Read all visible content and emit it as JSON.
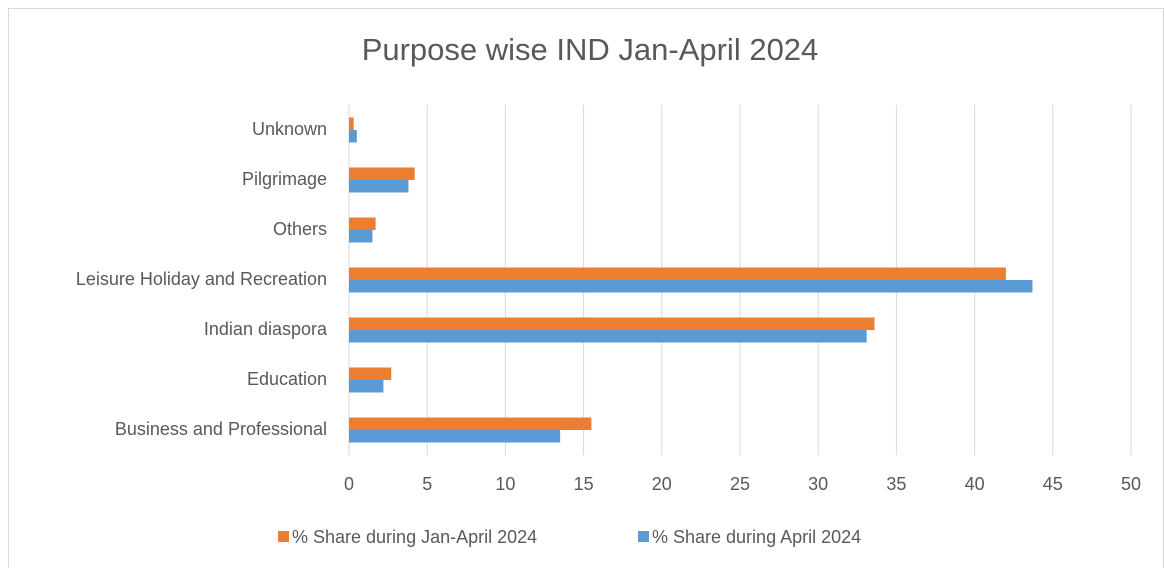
{
  "chart_data": {
    "type": "bar",
    "orientation": "horizontal",
    "title": "Purpose wise IND Jan-April 2024",
    "categories": [
      "Business and Professional",
      "Education",
      "Indian diaspora",
      "Leisure Holiday and Recreation",
      "Others",
      "Pilgrimage",
      "Unknown"
    ],
    "series": [
      {
        "name": "% Share during Jan-April 2024",
        "color": "#ed7d31",
        "values": [
          15.5,
          2.7,
          33.6,
          42.0,
          1.7,
          4.2,
          0.3
        ]
      },
      {
        "name": "% Share during April 2024",
        "color": "#5b9bd5",
        "values": [
          13.5,
          2.2,
          33.1,
          43.7,
          1.5,
          3.8,
          0.5
        ]
      }
    ],
    "xlim": [
      0,
      50
    ],
    "xticks": [
      0,
      5,
      10,
      15,
      20,
      25,
      30,
      35,
      40,
      45,
      50
    ],
    "grid": true,
    "legend": "bottom"
  }
}
